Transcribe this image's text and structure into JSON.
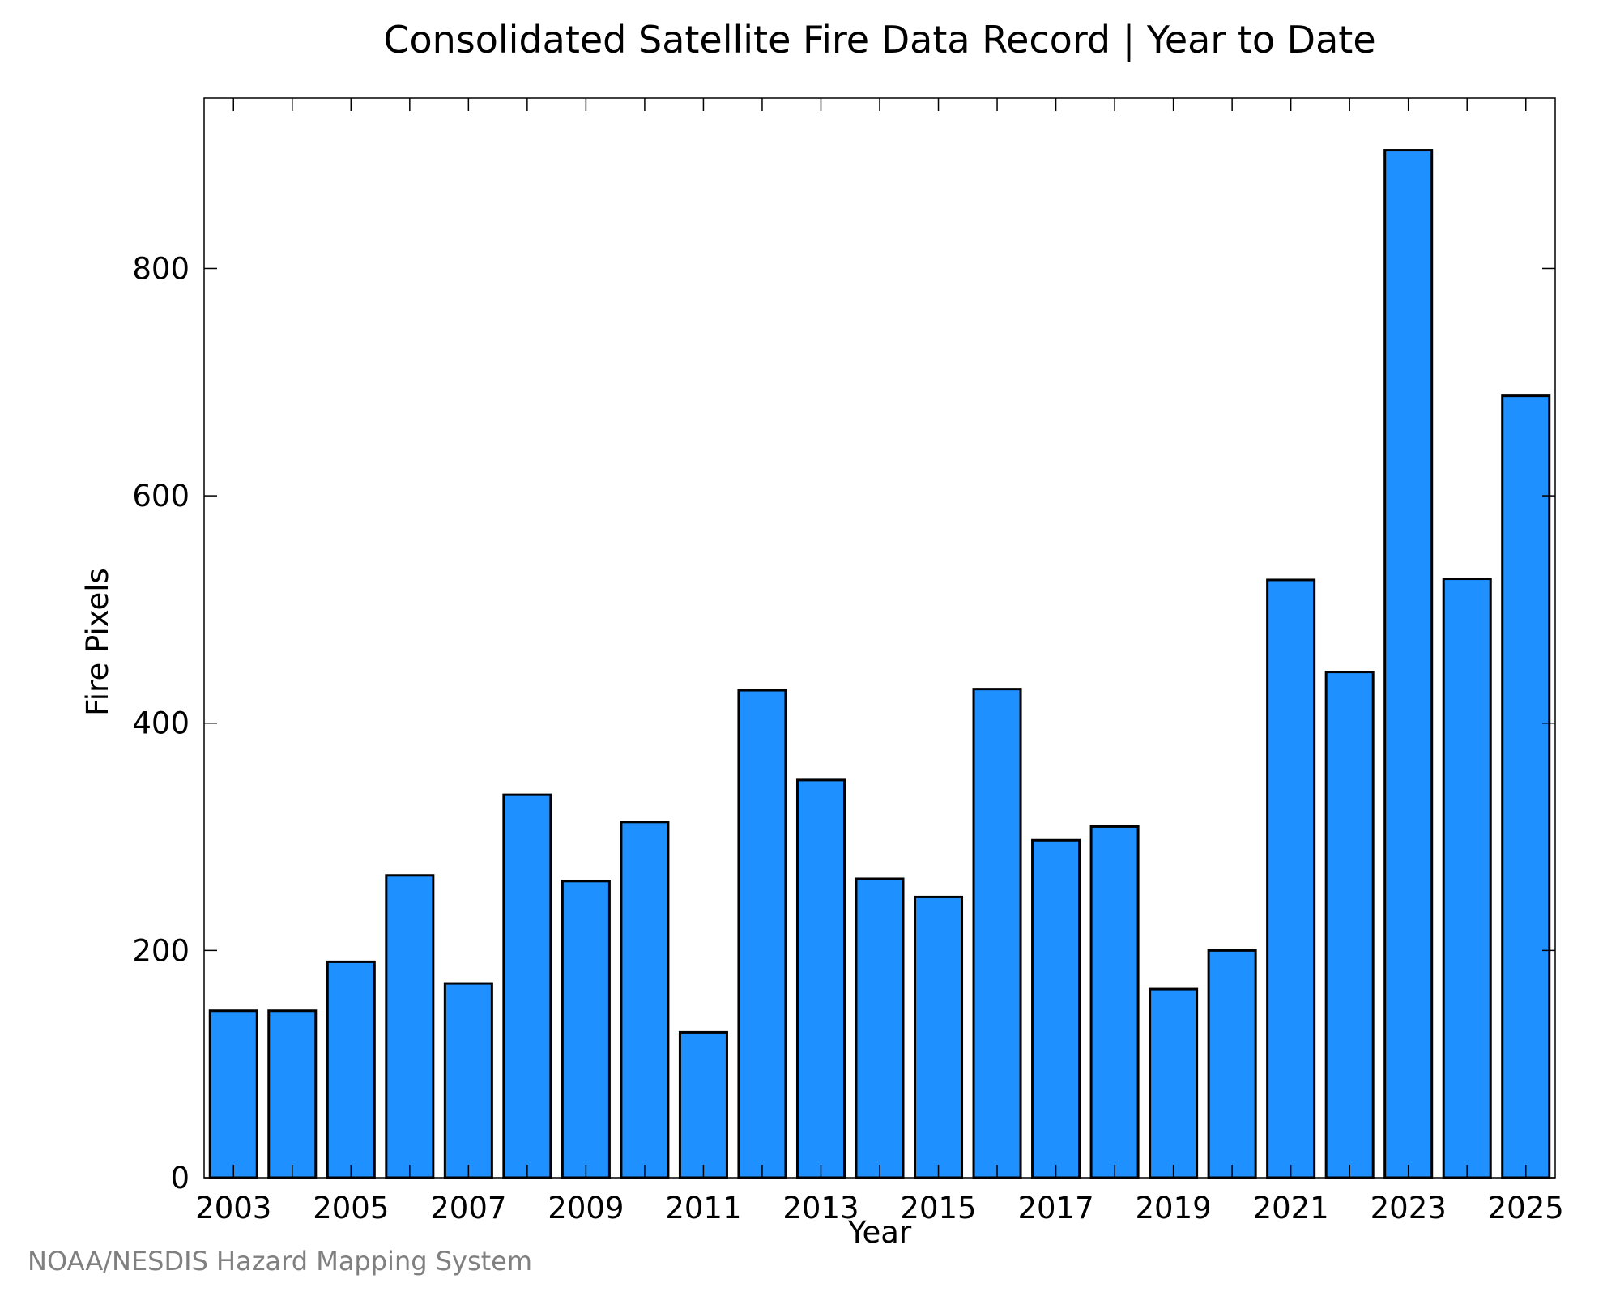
{
  "chart_data": {
    "type": "bar",
    "title": "Consolidated Satellite Fire Data Record | Year to Date",
    "xlabel": "Year",
    "ylabel": "Fire Pixels",
    "categories": [
      2003,
      2004,
      2005,
      2006,
      2007,
      2008,
      2009,
      2010,
      2011,
      2012,
      2013,
      2014,
      2015,
      2016,
      2017,
      2018,
      2019,
      2020,
      2021,
      2022,
      2023,
      2024,
      2025
    ],
    "values": [
      147,
      147,
      190,
      266,
      171,
      337,
      261,
      313,
      128,
      429,
      350,
      263,
      247,
      430,
      297,
      309,
      166,
      200,
      526,
      445,
      904,
      527,
      688
    ],
    "xticks": [
      "2003",
      "2005",
      "2007",
      "2009",
      "2011",
      "2013",
      "2015",
      "2017",
      "2019",
      "2021",
      "2023",
      "2025"
    ],
    "yticks": [
      "0",
      "200",
      "400",
      "600",
      "800"
    ],
    "ylim": [
      0,
      950
    ],
    "xlim": [
      2002.5,
      2025.5
    ],
    "bar_color": "#1e90ff",
    "edge_color": "#000000",
    "grid": false,
    "legend": "none"
  },
  "footer": {
    "credit": "NOAA/NESDIS Hazard Mapping System"
  }
}
